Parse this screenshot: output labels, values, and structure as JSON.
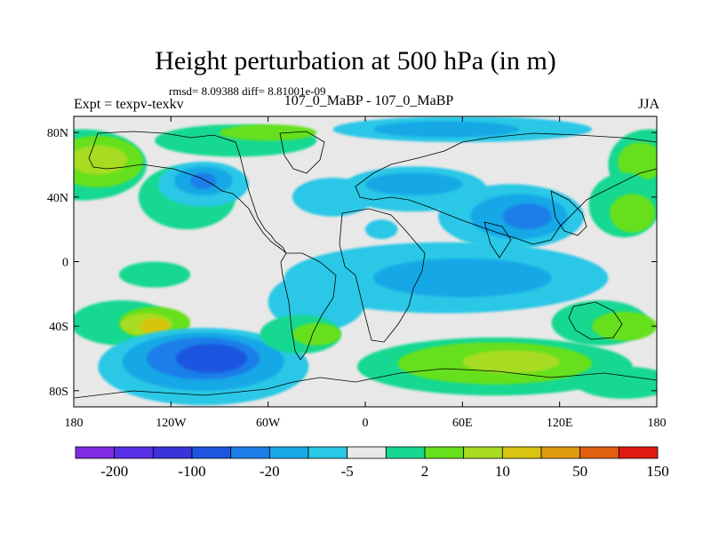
{
  "title": "Height perturbation at 500 hPa (in m)",
  "stats_line": "rmsd= 8.09388 diff= 8.81001e-09",
  "experiment_label": "Expt = texpv-texkv",
  "center_label": "107_0_MaBP - 107_0_MaBP",
  "season": "JJA",
  "map": {
    "lon_range": [
      -180,
      180
    ],
    "lat_range": [
      -90,
      90
    ],
    "x_ticks": [
      {
        "value": -180,
        "label": "180"
      },
      {
        "value": -120,
        "label": "120W"
      },
      {
        "value": -60,
        "label": "60W"
      },
      {
        "value": 0,
        "label": "0"
      },
      {
        "value": 60,
        "label": "60E"
      },
      {
        "value": 120,
        "label": "120E"
      },
      {
        "value": 180,
        "label": "180"
      }
    ],
    "y_ticks": [
      {
        "value": 80,
        "label": "80N"
      },
      {
        "value": 40,
        "label": "40N"
      },
      {
        "value": 0,
        "label": "0"
      },
      {
        "value": -40,
        "label": "40S"
      },
      {
        "value": -80,
        "label": "80S"
      }
    ],
    "background_color": "#e8e8e8",
    "anomaly_regions": [
      {
        "lon": 145,
        "lat": -38,
        "rx": 30,
        "ry": 14,
        "color": "#16d890"
      },
      {
        "lon": 160,
        "lat": -40,
        "rx": 20,
        "ry": 9,
        "color": "#66e01a"
      },
      {
        "lon": -150,
        "lat": -38,
        "rx": 32,
        "ry": 14,
        "color": "#16d890"
      },
      {
        "lon": -130,
        "lat": -38,
        "rx": 22,
        "ry": 10,
        "color": "#66e01a"
      },
      {
        "lon": -135,
        "lat": -39,
        "rx": 16,
        "ry": 7,
        "color": "#a8dc22"
      },
      {
        "lon": -130,
        "lat": -40,
        "rx": 9,
        "ry": 5,
        "color": "#d7c410"
      },
      {
        "lon": -130,
        "lat": -8,
        "rx": 22,
        "ry": 8,
        "color": "#16d890"
      },
      {
        "lon": -175,
        "lat": 60,
        "rx": 40,
        "ry": 22,
        "color": "#16d890"
      },
      {
        "lon": -165,
        "lat": 62,
        "rx": 28,
        "ry": 16,
        "color": "#66e01a"
      },
      {
        "lon": -165,
        "lat": 63,
        "rx": 18,
        "ry": 9,
        "color": "#a8dc22"
      },
      {
        "lon": 175,
        "lat": 60,
        "rx": 25,
        "ry": 22,
        "color": "#16d890"
      },
      {
        "lon": 170,
        "lat": 62,
        "rx": 14,
        "ry": 12,
        "color": "#66e01a"
      },
      {
        "lon": -80,
        "lat": 75,
        "rx": 50,
        "ry": 10,
        "color": "#16d890"
      },
      {
        "lon": -60,
        "lat": 80,
        "rx": 30,
        "ry": 5,
        "color": "#66e01a"
      },
      {
        "lon": 160,
        "lat": 35,
        "rx": 22,
        "ry": 20,
        "color": "#16d890"
      },
      {
        "lon": 165,
        "lat": 30,
        "rx": 14,
        "ry": 12,
        "color": "#66e01a"
      },
      {
        "lon": -110,
        "lat": 40,
        "rx": 30,
        "ry": 20,
        "color": "#16d890"
      },
      {
        "lon": -100,
        "lat": 48,
        "rx": 28,
        "ry": 14,
        "color": "#2ac8e6"
      },
      {
        "lon": -100,
        "lat": 50,
        "rx": 18,
        "ry": 9,
        "color": "#17a8e6"
      },
      {
        "lon": -100,
        "lat": 50,
        "rx": 8,
        "ry": 5,
        "color": "#1e7ee8"
      },
      {
        "lon": -20,
        "lat": 40,
        "rx": 25,
        "ry": 12,
        "color": "#2ac8e6"
      },
      {
        "lon": 30,
        "lat": 45,
        "rx": 45,
        "ry": 14,
        "color": "#2ac8e6"
      },
      {
        "lon": 30,
        "lat": 48,
        "rx": 30,
        "ry": 7,
        "color": "#17a8e6"
      },
      {
        "lon": 90,
        "lat": 28,
        "rx": 45,
        "ry": 20,
        "color": "#2ac8e6"
      },
      {
        "lon": 95,
        "lat": 28,
        "rx": 30,
        "ry": 14,
        "color": "#17a8e6"
      },
      {
        "lon": 100,
        "lat": 28,
        "rx": 15,
        "ry": 8,
        "color": "#1e7ee8"
      },
      {
        "lon": 60,
        "lat": 82,
        "rx": 80,
        "ry": 8,
        "color": "#2ac8e6"
      },
      {
        "lon": 50,
        "lat": 82,
        "rx": 45,
        "ry": 5,
        "color": "#17a8e6"
      },
      {
        "lon": 10,
        "lat": 20,
        "rx": 10,
        "ry": 6,
        "color": "#2ac8e6"
      },
      {
        "lon": 50,
        "lat": -10,
        "rx": 100,
        "ry": 22,
        "color": "#2ac8e6"
      },
      {
        "lon": 60,
        "lat": -10,
        "rx": 55,
        "ry": 12,
        "color": "#17a8e6"
      },
      {
        "lon": -30,
        "lat": -25,
        "rx": 30,
        "ry": 18,
        "color": "#2ac8e6"
      },
      {
        "lon": -100,
        "lat": -65,
        "rx": 65,
        "ry": 24,
        "color": "#2ac8e6"
      },
      {
        "lon": -100,
        "lat": -62,
        "rx": 50,
        "ry": 18,
        "color": "#17a8e6"
      },
      {
        "lon": -100,
        "lat": -60,
        "rx": 35,
        "ry": 13,
        "color": "#1e7ee8"
      },
      {
        "lon": -95,
        "lat": -60,
        "rx": 22,
        "ry": 9,
        "color": "#1e56e0"
      },
      {
        "lon": -40,
        "lat": -45,
        "rx": 25,
        "ry": 12,
        "color": "#16d890"
      },
      {
        "lon": -30,
        "lat": -45,
        "rx": 15,
        "ry": 7,
        "color": "#66e01a"
      },
      {
        "lon": 80,
        "lat": -65,
        "rx": 85,
        "ry": 18,
        "color": "#16d890"
      },
      {
        "lon": 80,
        "lat": -63,
        "rx": 60,
        "ry": 13,
        "color": "#66e01a"
      },
      {
        "lon": 90,
        "lat": -62,
        "rx": 30,
        "ry": 7,
        "color": "#a8dc22"
      },
      {
        "lon": 160,
        "lat": -75,
        "rx": 30,
        "ry": 10,
        "color": "#16d890"
      }
    ]
  },
  "colorbar": {
    "colors": [
      "#7f2be0",
      "#5a30e6",
      "#3b32dc",
      "#1e56e0",
      "#1e7ee8",
      "#17a8e6",
      "#2ac8e6",
      "#e8e8e8",
      "#16d890",
      "#66e01a",
      "#a8dc22",
      "#d7c410",
      "#e09a10",
      "#e06010",
      "#e01a10"
    ],
    "labels": [
      "-200",
      "-100",
      "-20",
      "-5",
      "2",
      "10",
      "50",
      "150"
    ]
  }
}
